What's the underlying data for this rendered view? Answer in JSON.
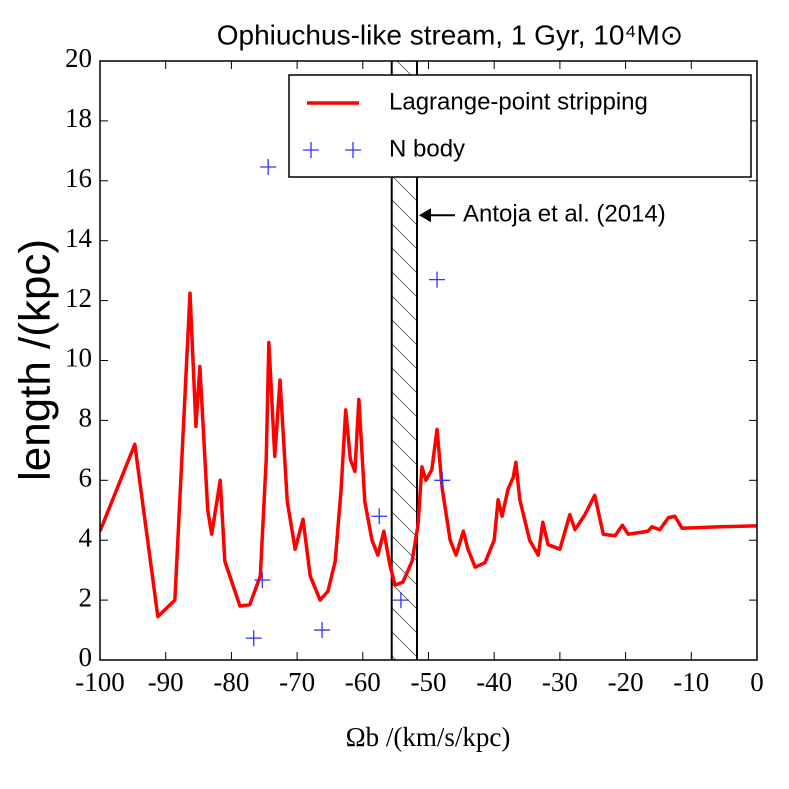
{
  "chart_data": {
    "type": "line",
    "title": "Ophiuchus-like stream, 1 Gyr, 10⁴M⊙",
    "x_label": "Ωb /(km/s/kpc)",
    "y_label": "length /(kpc)",
    "xlim": [
      -100,
      0
    ],
    "ylim": [
      0,
      20
    ],
    "xticks": [
      -100,
      -90,
      -80,
      -70,
      -60,
      -50,
      -40,
      -30,
      -20,
      -10,
      0
    ],
    "yticks": [
      0,
      2,
      4,
      6,
      8,
      10,
      12,
      14,
      16,
      18,
      20
    ],
    "legend": "upper right",
    "series": [
      {
        "name": "Lagrange-point stripping",
        "color": "#ff0000",
        "kind": "line",
        "x": [
          -100,
          -94.7,
          -91.2,
          -88.6,
          -86.3,
          -85.4,
          -84.8,
          -83.6,
          -83.0,
          -81.7,
          -81.0,
          -78.7,
          -77.2,
          -75.6,
          -74.7,
          -74.3,
          -73.4,
          -72.6,
          -71.5,
          -70.3,
          -69.1,
          -68.0,
          -66.5,
          -65.3,
          -64.2,
          -63.3,
          -62.6,
          -61.9,
          -61.2,
          -60.6,
          -59.7,
          -58.6,
          -57.7,
          -56.8,
          -55.9,
          -55.1,
          -53.9,
          -52.5,
          -51.6,
          -51.0,
          -50.4,
          -49.5,
          -48.7,
          -47.9,
          -46.7,
          -45.8,
          -44.7,
          -44.0,
          -42.9,
          -41.4,
          -40.0,
          -39.4,
          -38.8,
          -37.9,
          -37.1,
          -36.7,
          -36.1,
          -34.6,
          -33.3,
          -32.6,
          -31.8,
          -30.0,
          -28.5,
          -27.7,
          -26.2,
          -24.7,
          -23.4,
          -21.6,
          -20.5,
          -19.6,
          -16.6,
          -16.0,
          -14.8,
          -13.5,
          -12.5,
          -11.4,
          -5.6,
          0
        ],
        "values": [
          4.3,
          7.2,
          1.45,
          2.0,
          12.25,
          7.8,
          9.8,
          5.0,
          4.2,
          6.0,
          3.3,
          1.8,
          1.85,
          2.8,
          6.7,
          10.6,
          6.8,
          9.35,
          5.3,
          3.7,
          4.7,
          2.8,
          2.0,
          2.3,
          3.3,
          5.7,
          8.35,
          6.7,
          6.3,
          8.7,
          5.3,
          4.0,
          3.5,
          4.3,
          3.2,
          2.5,
          2.6,
          3.3,
          4.5,
          6.45,
          6.0,
          6.35,
          7.7,
          5.7,
          4.0,
          3.5,
          4.3,
          3.7,
          3.1,
          3.25,
          4.0,
          5.35,
          4.8,
          5.7,
          6.1,
          6.6,
          5.35,
          4.0,
          3.5,
          4.6,
          3.85,
          3.7,
          4.85,
          4.35,
          4.85,
          5.5,
          4.2,
          4.15,
          4.5,
          4.2,
          4.3,
          4.45,
          4.35,
          4.75,
          4.8,
          4.4,
          4.45,
          4.48
        ]
      },
      {
        "name": "N body",
        "color": "#3333ff",
        "kind": "plus",
        "x": [
          -76.6,
          -75.3,
          -74.4,
          -66.2,
          -57.5,
          -54.2,
          -48.7,
          -47.9
        ],
        "values": [
          0.73,
          2.67,
          16.46,
          1.0,
          4.8,
          2.0,
          12.7,
          6.0
        ]
      }
    ],
    "band": [
      -55.6,
      -51.75
    ],
    "annotation": {
      "text": "Antoja et al. (2014)",
      "x": -51.75,
      "y": 14.85
    }
  }
}
